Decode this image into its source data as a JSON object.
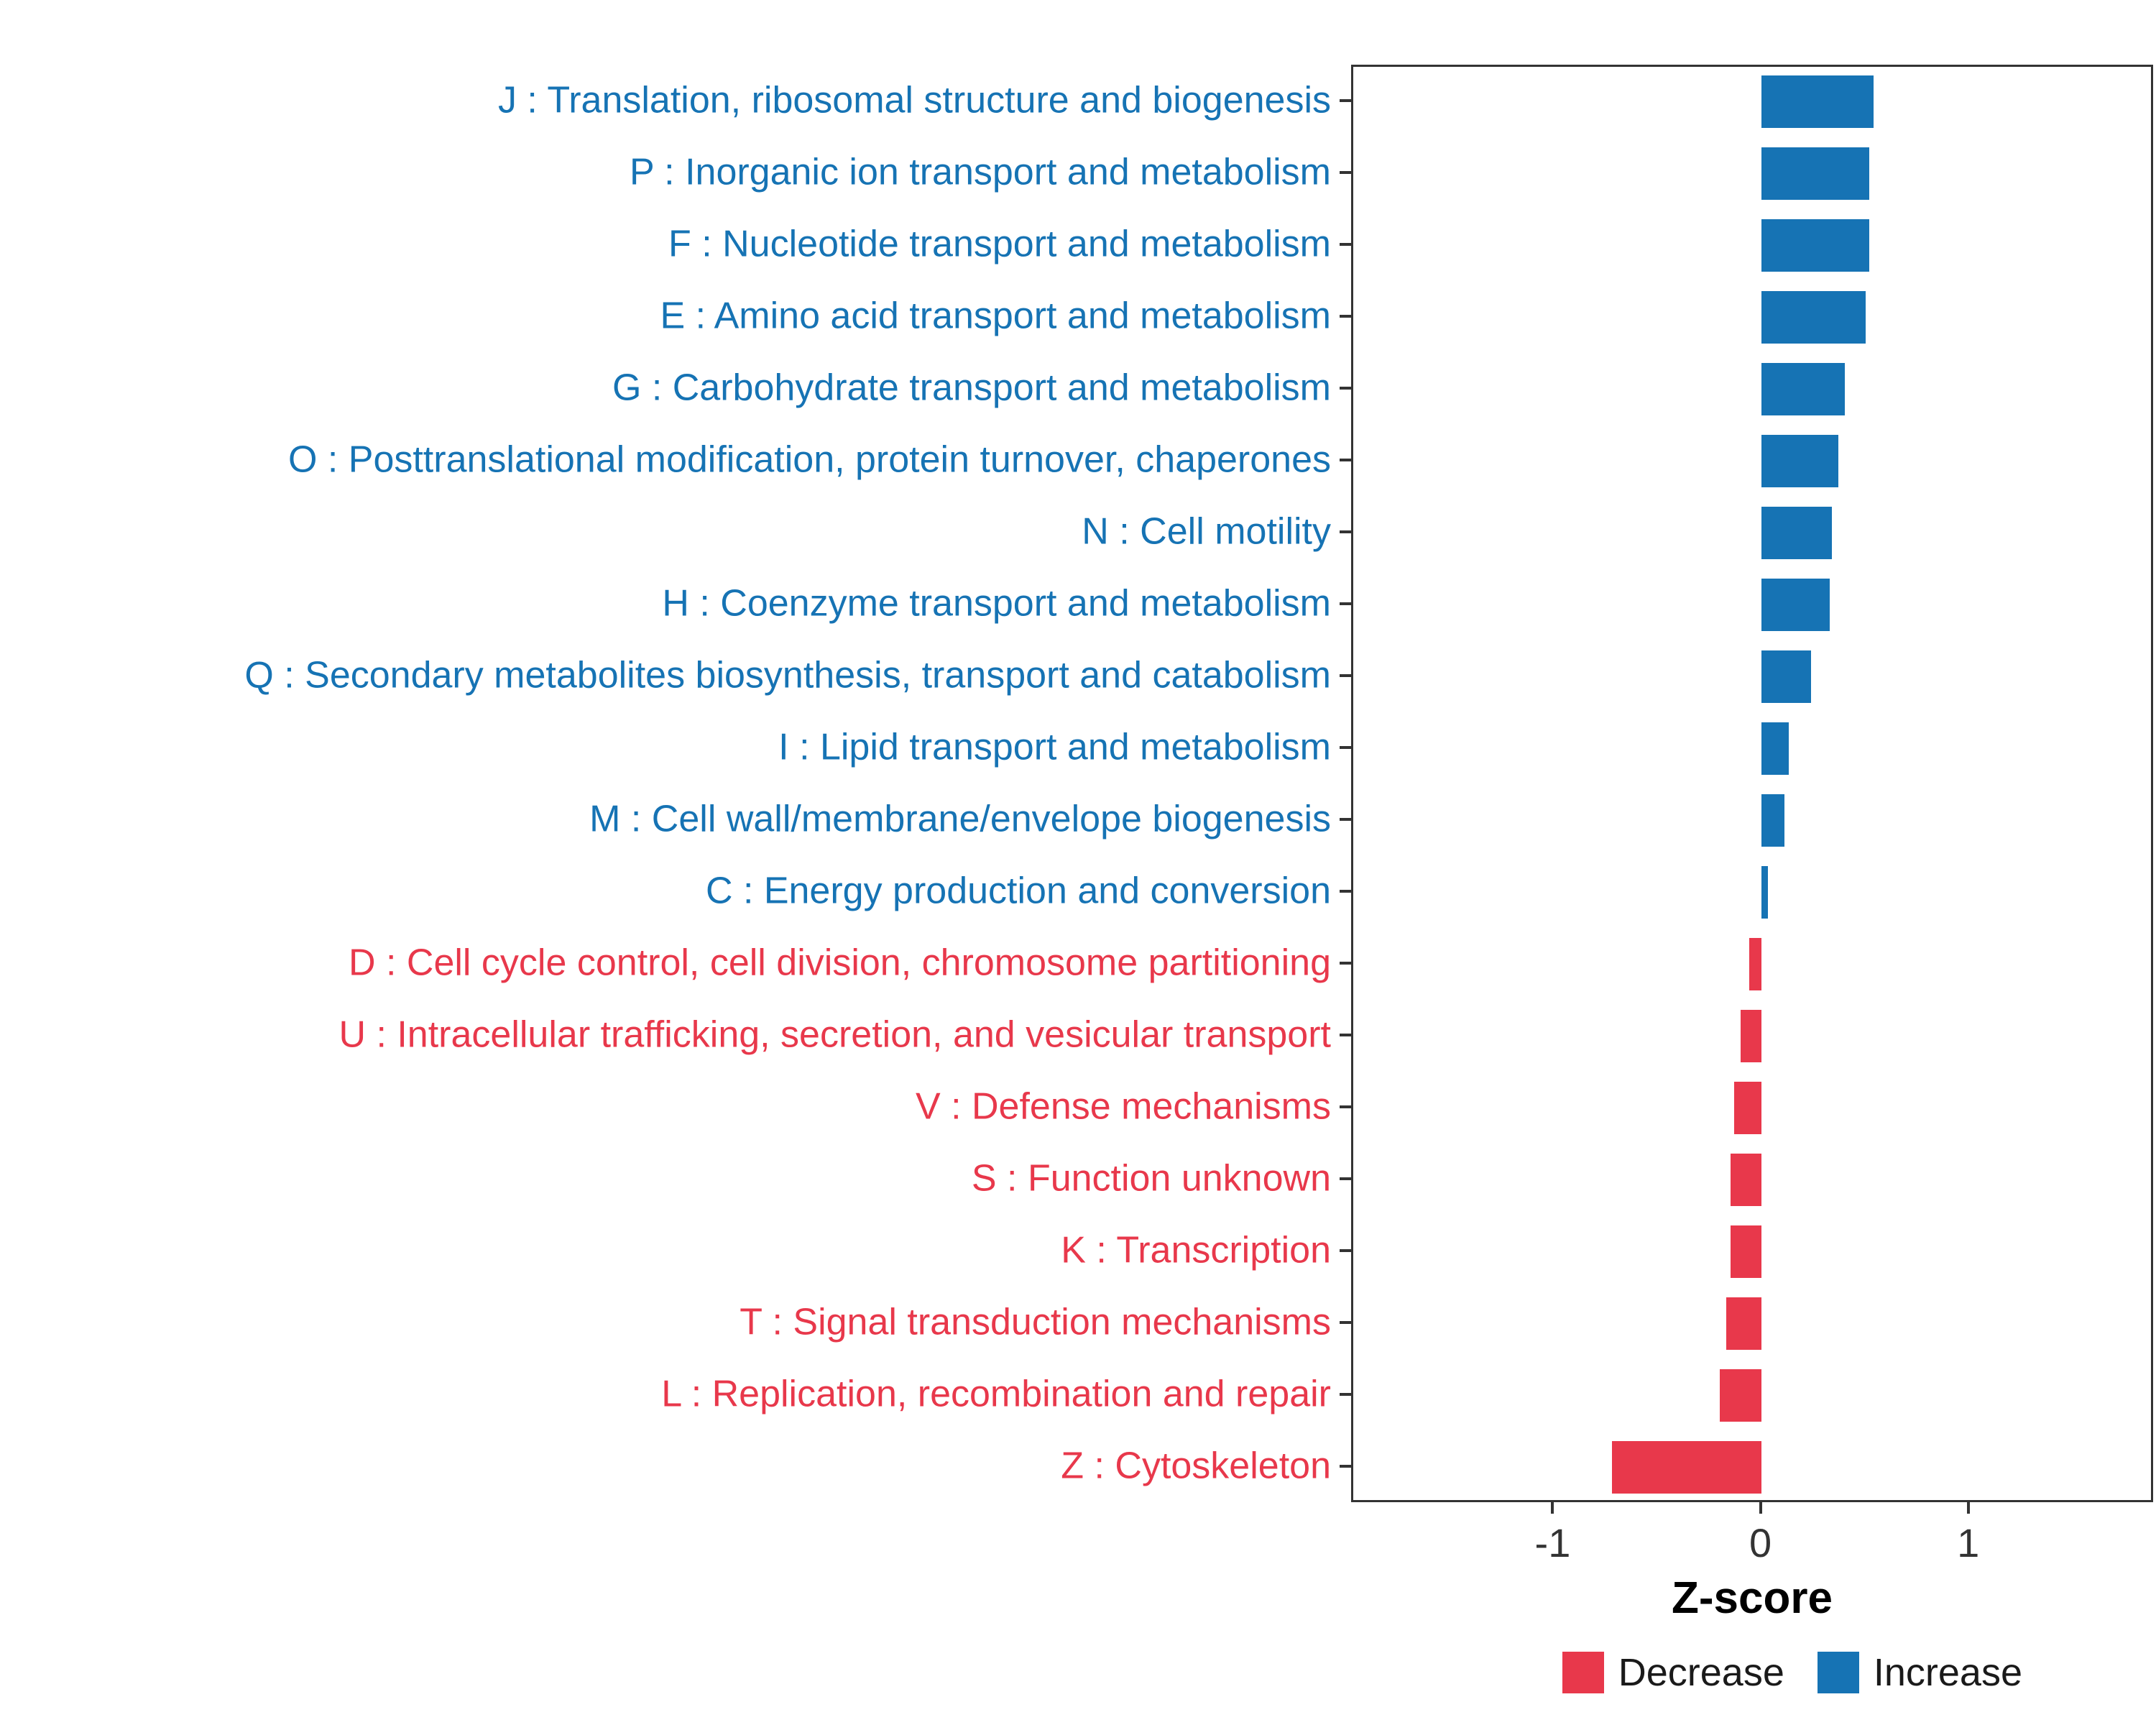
{
  "chart_data": {
    "type": "bar",
    "orientation": "horizontal",
    "title": "",
    "xlabel": "Z-score",
    "xlim": [
      -1.97,
      1.89
    ],
    "x_ticks": [
      -1,
      0,
      1
    ],
    "grid": false,
    "legend_position": "bottom-right",
    "categories": [
      "J : Translation, ribosomal structure and biogenesis",
      "P : Inorganic ion transport and metabolism",
      "F : Nucleotide transport and metabolism",
      "E : Amino acid transport and metabolism",
      "G : Carbohydrate transport and metabolism",
      "O : Posttranslational modification, protein turnover, chaperones",
      "N : Cell motility",
      "H : Coenzyme transport and metabolism",
      "Q : Secondary metabolites biosynthesis, transport and catabolism",
      "I : Lipid transport and metabolism",
      "M : Cell wall/membrane/envelope biogenesis",
      "C : Energy production and conversion",
      "D : Cell cycle control, cell division, chromosome partitioning",
      "U : Intracellular trafficking, secretion, and vesicular transport",
      "V : Defense mechanisms",
      "S : Function unknown",
      "K : Transcription",
      "T : Signal transduction mechanisms",
      "L : Replication, recombination and repair",
      "Z : Cytoskeleton"
    ],
    "values": [
      0.54,
      0.52,
      0.52,
      0.5,
      0.4,
      0.37,
      0.34,
      0.33,
      0.24,
      0.13,
      0.11,
      0.03,
      -0.06,
      -0.1,
      -0.13,
      -0.15,
      -0.15,
      -0.17,
      -0.2,
      -0.72
    ],
    "directions": [
      "Increase",
      "Increase",
      "Increase",
      "Increase",
      "Increase",
      "Increase",
      "Increase",
      "Increase",
      "Increase",
      "Increase",
      "Increase",
      "Increase",
      "Decrease",
      "Decrease",
      "Decrease",
      "Decrease",
      "Decrease",
      "Decrease",
      "Decrease",
      "Decrease"
    ],
    "colors": {
      "Increase": "#1673B4",
      "Decrease": "#E8384B"
    },
    "legend": [
      {
        "label": "Decrease",
        "color": "#E8384B"
      },
      {
        "label": "Increase",
        "color": "#1673B4"
      }
    ]
  }
}
